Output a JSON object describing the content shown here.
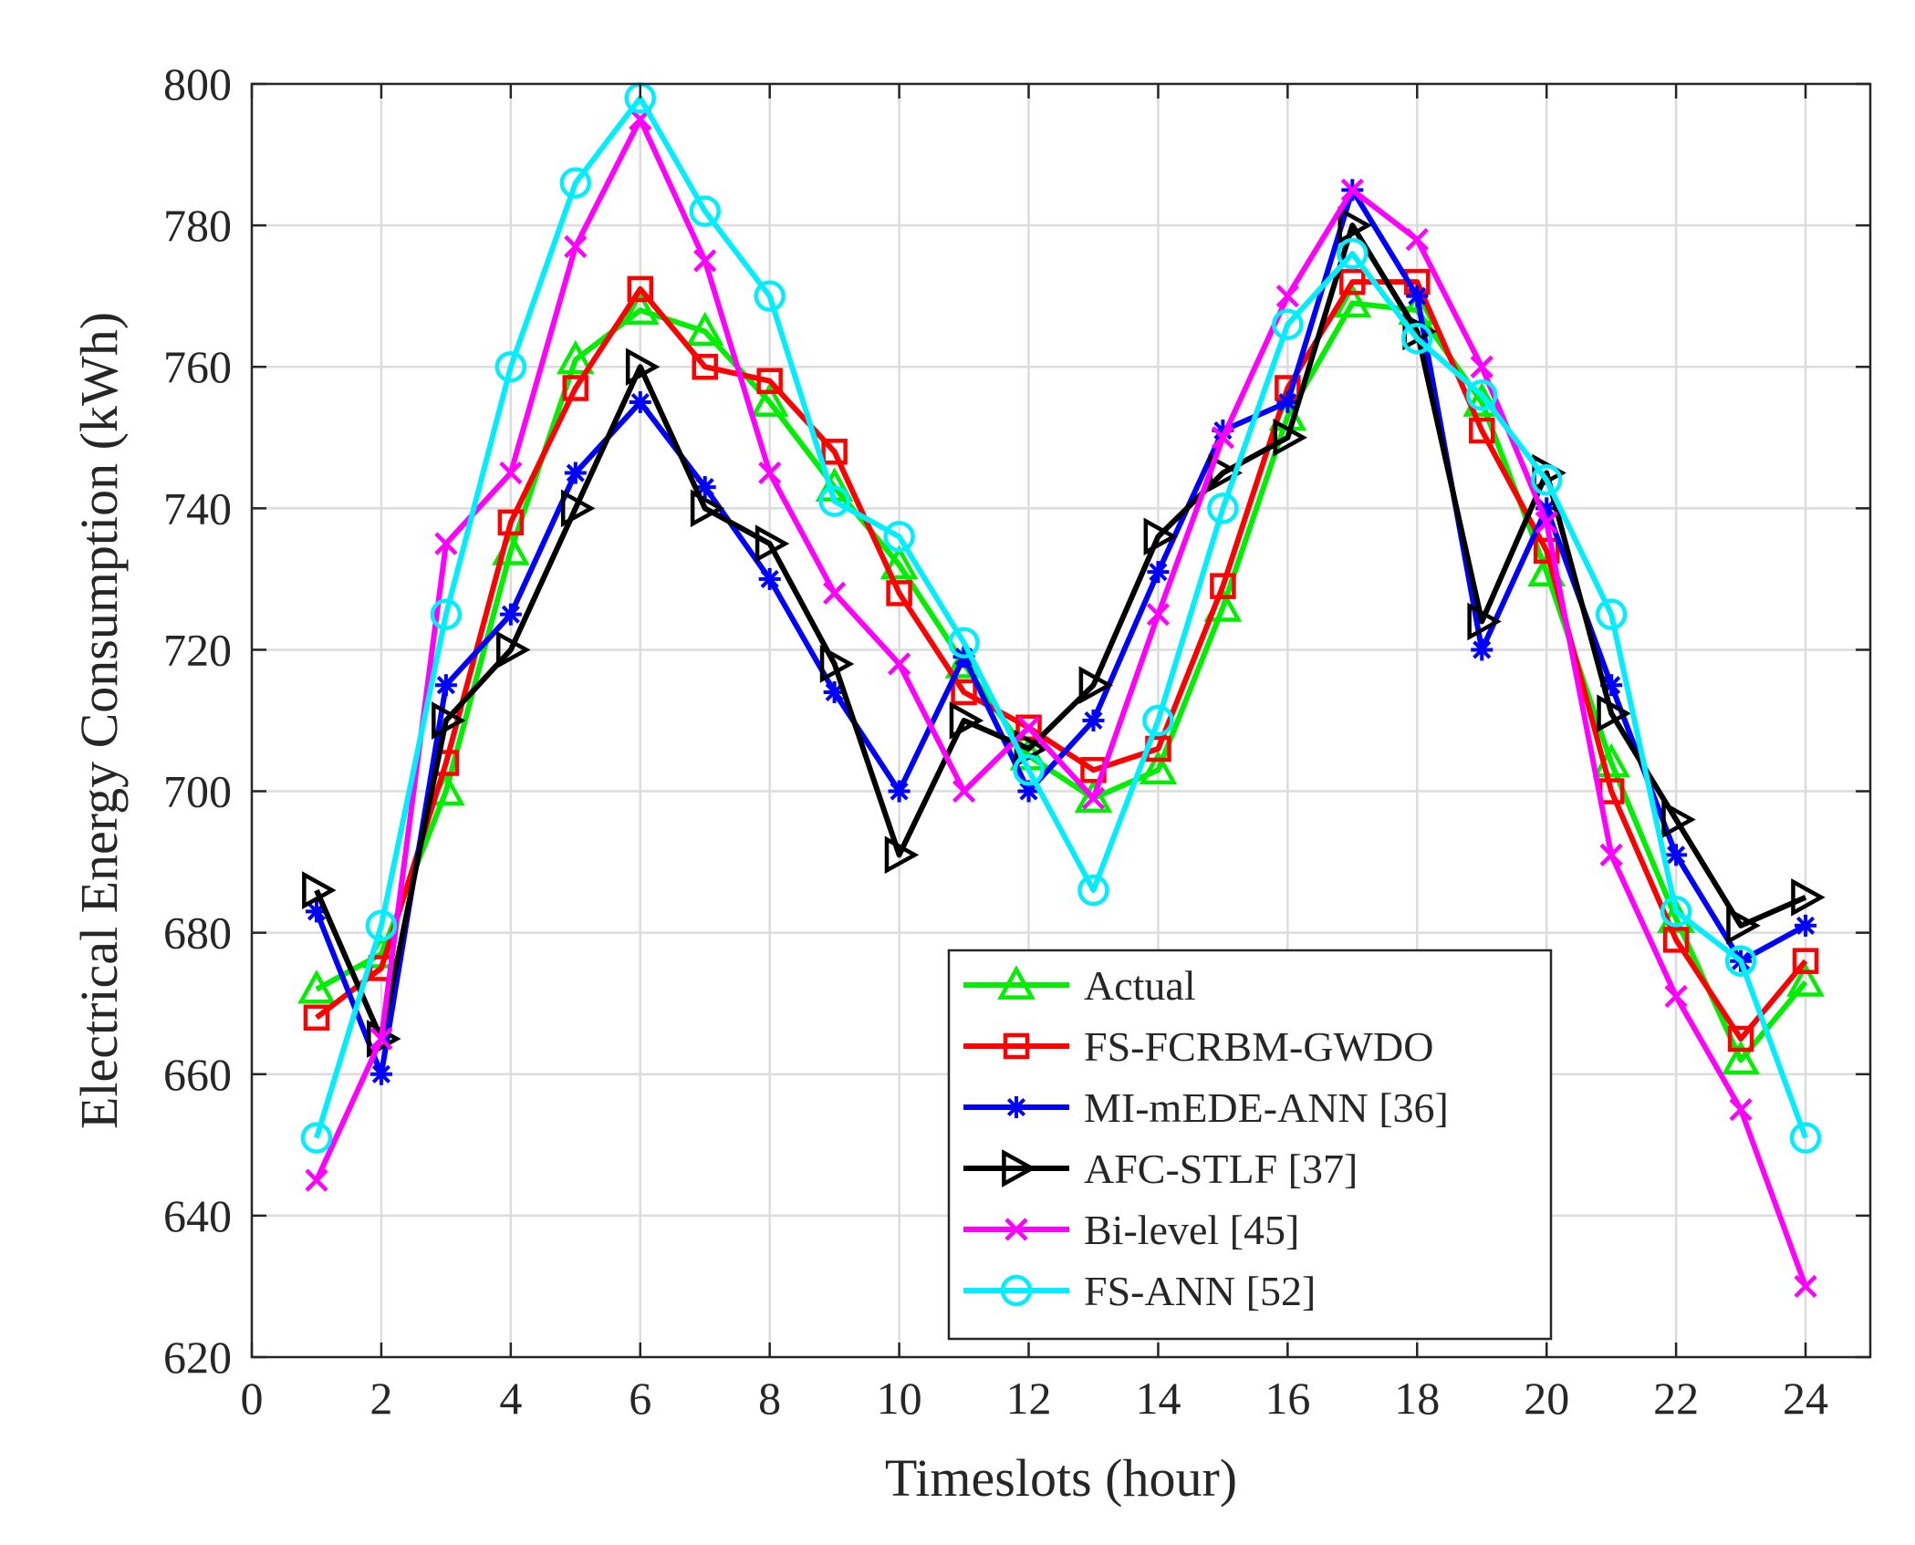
{
  "chart_data": {
    "type": "line",
    "title": "",
    "xlabel": "Timeslots (hour)",
    "ylabel": "Electrical Energy Consumption (kWh)",
    "xlim": [
      0,
      25
    ],
    "ylim": [
      620,
      800
    ],
    "xticks": [
      0,
      2,
      4,
      6,
      8,
      10,
      12,
      14,
      16,
      18,
      20,
      22,
      24
    ],
    "yticks": [
      620,
      640,
      660,
      680,
      700,
      720,
      740,
      760,
      780,
      800
    ],
    "grid": true,
    "legend_position": "bottom-right",
    "x": [
      1,
      2,
      3,
      4,
      5,
      6,
      7,
      8,
      9,
      10,
      11,
      12,
      13,
      14,
      15,
      16,
      17,
      18,
      19,
      20,
      21,
      22,
      23,
      24
    ],
    "series": [
      {
        "name": "Actual",
        "color": "#00ee00",
        "marker": "triangle-up",
        "values": [
          672,
          677,
          700,
          734,
          761,
          768,
          765,
          755,
          743,
          732,
          718,
          705,
          699,
          703,
          726,
          753,
          769,
          768,
          755,
          731,
          704,
          682,
          662,
          673
        ]
      },
      {
        "name": "FS-FCRBM-GWDO",
        "color": "#ff0000",
        "marker": "square",
        "values": [
          668,
          675,
          704,
          738,
          757,
          771,
          760,
          758,
          748,
          728,
          714,
          709,
          703,
          706,
          729,
          757,
          772,
          772,
          751,
          734,
          700,
          679,
          665,
          676
        ]
      },
      {
        "name": "MI-mEDE-ANN [36]",
        "color": "#0000ff",
        "marker": "star",
        "values": [
          683,
          660,
          715,
          725,
          745,
          755,
          743,
          730,
          714,
          700,
          719,
          700,
          710,
          731,
          751,
          755,
          785,
          770,
          720,
          740,
          715,
          691,
          676,
          681
        ]
      },
      {
        "name": "AFC-STLF [37]",
        "color": "#000000",
        "marker": "triangle-right",
        "values": [
          686,
          665,
          710,
          720,
          740,
          760,
          740,
          735,
          718,
          691,
          710,
          706,
          715,
          736,
          745,
          750,
          780,
          765,
          724,
          745,
          711,
          696,
          681,
          685
        ]
      },
      {
        "name": "Bi-level [45]",
        "color": "#ff00ff",
        "marker": "x",
        "values": [
          645,
          665,
          735,
          745,
          777,
          795,
          775,
          745,
          728,
          718,
          700,
          709,
          699,
          725,
          750,
          770,
          785,
          778,
          760,
          738,
          691,
          671,
          655,
          630
        ]
      },
      {
        "name": "FS-ANN [52]",
        "color": "#00eeff",
        "marker": "circle",
        "values": [
          651,
          681,
          725,
          760,
          786,
          798,
          782,
          770,
          741,
          736,
          721,
          703,
          686,
          710,
          740,
          766,
          776,
          764,
          756,
          744,
          725,
          683,
          676,
          651
        ]
      }
    ]
  }
}
